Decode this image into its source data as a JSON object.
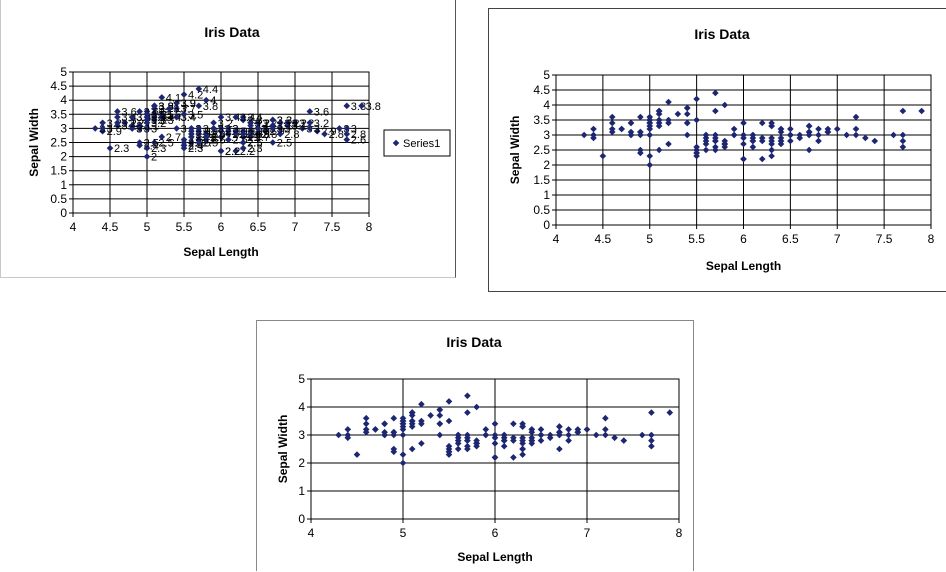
{
  "chart_data": [
    {
      "type": "scatter",
      "title": "Iris Data",
      "xlabel": "Sepal Length",
      "ylabel": "Sepal Width",
      "xlim": [
        4,
        8
      ],
      "ylim": [
        0,
        5
      ],
      "xticks": [
        "4",
        "4.5",
        "5",
        "5.5",
        "6",
        "6.5",
        "7",
        "7.5",
        "8"
      ],
      "yticks": [
        "0",
        "0.5",
        "1",
        "1.5",
        "2",
        "2.5",
        "3",
        "3.5",
        "4",
        "4.5",
        "5"
      ],
      "grid": true,
      "data_labels": true,
      "legend": {
        "position": "right",
        "entries": [
          "Series1"
        ]
      }
    },
    {
      "type": "scatter",
      "title": "Iris Data",
      "xlabel": "Sepal Length",
      "ylabel": "Sepal Width",
      "xlim": [
        4,
        8
      ],
      "ylim": [
        0,
        5
      ],
      "xticks": [
        "4",
        "4.5",
        "5",
        "5.5",
        "6",
        "6.5",
        "7",
        "7.5",
        "8"
      ],
      "yticks": [
        "0",
        "0.5",
        "1",
        "1.5",
        "2",
        "2.5",
        "3",
        "3.5",
        "4",
        "4.5",
        "5"
      ],
      "grid": true
    },
    {
      "type": "scatter",
      "title": "Iris Data",
      "xlabel": "Sepal Length",
      "ylabel": "Sepal Width",
      "xlim": [
        4,
        8
      ],
      "ylim": [
        0,
        5
      ],
      "xticks": [
        "4",
        "5",
        "6",
        "7",
        "8"
      ],
      "yticks": [
        "0",
        "1",
        "2",
        "3",
        "4",
        "5"
      ],
      "grid": true
    }
  ],
  "points": {
    "x": [
      5.1,
      4.9,
      4.7,
      4.6,
      5.0,
      5.4,
      4.6,
      5.0,
      4.4,
      4.9,
      5.4,
      4.8,
      4.8,
      4.3,
      5.8,
      5.7,
      5.4,
      5.1,
      5.7,
      5.1,
      5.4,
      5.1,
      4.6,
      5.1,
      4.8,
      5.0,
      5.0,
      5.2,
      5.2,
      4.7,
      4.8,
      5.4,
      5.2,
      5.5,
      4.9,
      5.0,
      5.5,
      4.9,
      4.4,
      5.1,
      5.0,
      4.5,
      4.4,
      5.0,
      5.1,
      4.8,
      5.1,
      4.6,
      5.3,
      5.0,
      7.0,
      6.4,
      6.9,
      5.5,
      6.5,
      5.7,
      6.3,
      4.9,
      6.6,
      5.2,
      5.0,
      5.9,
      6.0,
      6.1,
      5.6,
      6.7,
      5.6,
      5.8,
      6.2,
      5.6,
      5.9,
      6.1,
      6.3,
      6.1,
      6.4,
      6.6,
      6.8,
      6.7,
      6.0,
      5.7,
      5.5,
      5.5,
      5.8,
      6.0,
      5.4,
      6.0,
      6.7,
      6.3,
      5.6,
      5.5,
      5.5,
      6.1,
      5.8,
      5.0,
      5.6,
      5.7,
      5.7,
      6.2,
      5.1,
      5.7,
      6.3,
      5.8,
      7.1,
      6.3,
      6.5,
      7.6,
      4.9,
      7.3,
      6.7,
      7.2,
      6.5,
      6.4,
      6.8,
      5.7,
      5.8,
      6.4,
      6.5,
      7.7,
      7.7,
      6.0,
      6.9,
      5.6,
      7.7,
      6.3,
      6.7,
      7.2,
      6.2,
      6.1,
      6.4,
      7.2,
      7.4,
      7.9,
      6.4,
      6.3,
      6.1,
      7.7,
      6.3,
      6.4,
      6.0,
      6.9,
      6.7,
      6.9,
      5.8,
      6.8,
      6.7,
      6.7,
      6.3,
      6.5,
      6.2,
      5.9
    ],
    "y": [
      3.5,
      3.0,
      3.2,
      3.1,
      3.6,
      3.9,
      3.4,
      3.4,
      2.9,
      3.1,
      3.7,
      3.4,
      3.0,
      3.0,
      4.0,
      4.4,
      3.9,
      3.5,
      3.8,
      3.8,
      3.4,
      3.7,
      3.6,
      3.3,
      3.4,
      3.0,
      3.4,
      3.5,
      3.4,
      3.2,
      3.1,
      3.4,
      4.1,
      4.2,
      3.1,
      3.2,
      3.5,
      3.6,
      3.0,
      3.4,
      3.5,
      2.3,
      3.2,
      3.5,
      3.8,
      3.0,
      3.8,
      3.2,
      3.7,
      3.3,
      3.2,
      3.2,
      3.1,
      2.3,
      2.8,
      2.8,
      3.3,
      2.4,
      2.9,
      2.7,
      2.0,
      3.0,
      2.2,
      2.9,
      2.9,
      3.1,
      3.0,
      2.7,
      2.2,
      2.5,
      3.2,
      2.8,
      2.5,
      2.8,
      2.9,
      3.0,
      2.8,
      3.0,
      2.9,
      2.6,
      2.4,
      2.4,
      2.7,
      2.7,
      3.0,
      3.4,
      3.1,
      2.3,
      3.0,
      2.5,
      2.6,
      3.0,
      2.6,
      2.3,
      2.7,
      3.0,
      2.9,
      2.9,
      2.5,
      2.8,
      3.3,
      2.7,
      3.0,
      2.9,
      3.0,
      3.0,
      2.5,
      2.9,
      2.5,
      3.6,
      3.2,
      2.7,
      3.0,
      2.5,
      2.8,
      3.2,
      3.0,
      3.8,
      2.6,
      2.2,
      3.2,
      2.8,
      2.8,
      2.7,
      3.3,
      3.2,
      2.8,
      3.0,
      2.8,
      3.0,
      2.8,
      3.8,
      2.8,
      2.8,
      2.6,
      3.0,
      3.4,
      3.1,
      3.0,
      3.1,
      3.1,
      3.1,
      2.7,
      3.2,
      3.3,
      3.0,
      2.5,
      3.0,
      3.4,
      3.0
    ]
  }
}
